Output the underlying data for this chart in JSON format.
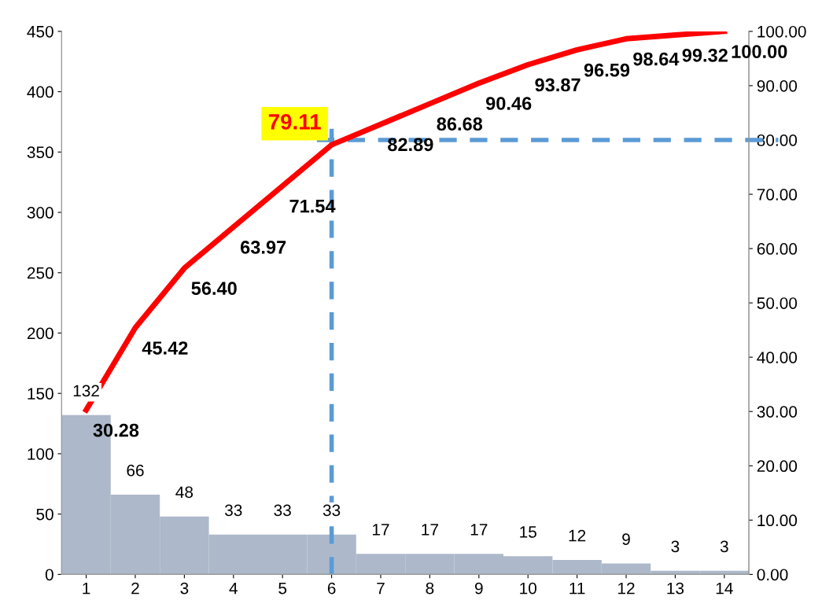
{
  "chart_data": {
    "type": "bar",
    "categories": [
      "1",
      "2",
      "3",
      "4",
      "5",
      "6",
      "7",
      "8",
      "9",
      "10",
      "11",
      "12",
      "13",
      "14"
    ],
    "series": [
      {
        "color": "#adb9ca",
        "values": [
          132,
          66,
          48,
          33,
          33,
          33,
          17,
          17,
          17,
          15,
          12,
          9,
          3,
          3
        ],
        "data_labels": true
      },
      {
        "type": "line",
        "axis": "y2",
        "color": "#ff0000",
        "values": [
          30.28,
          45.42,
          56.4,
          63.97,
          71.54,
          79.11,
          82.89,
          86.68,
          90.46,
          93.87,
          96.59,
          98.64,
          99.32,
          100.0
        ],
        "value_labels": [
          "30.28",
          "45.42",
          "56.40",
          "63.97",
          "71.54",
          null,
          "82.89",
          "86.68",
          "90.46",
          "93.87",
          "96.59",
          "98.64",
          "99.32",
          "100.00"
        ],
        "marker": "none",
        "line_style": "solid"
      }
    ],
    "ylim": [
      0,
      450
    ],
    "yticks": [
      0,
      50,
      100,
      150,
      200,
      250,
      300,
      350,
      400,
      450
    ],
    "y2lim": [
      0,
      100
    ],
    "y2ticks": [
      {
        "value": 0,
        "label": "0.00"
      },
      {
        "value": 10,
        "label": "10.00"
      },
      {
        "value": 20,
        "label": "20.00"
      },
      {
        "value": 30,
        "label": "30.00"
      },
      {
        "value": 40,
        "label": "40.00"
      },
      {
        "value": 50,
        "label": "50.00"
      },
      {
        "value": 60,
        "label": "60.00"
      },
      {
        "value": 70,
        "label": "70.00"
      },
      {
        "value": 80,
        "label": "80.00"
      },
      {
        "value": 90,
        "label": "90.00"
      },
      {
        "value": 100,
        "label": "100.00"
      }
    ],
    "ref_lines": [
      {
        "axis": "y2",
        "value": 80,
        "color": "#5b9bd5",
        "line_style": "dashed"
      },
      {
        "axis": "x",
        "value": "6",
        "color": "#5b9bd5",
        "line_style": "dashed"
      }
    ],
    "annotations": [
      "79.11"
    ],
    "grid": false,
    "legend": false
  }
}
